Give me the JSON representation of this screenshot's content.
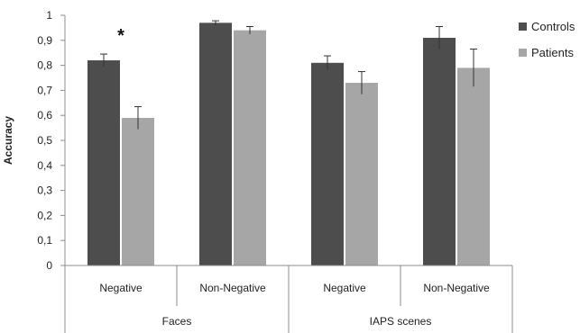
{
  "chart_data": {
    "type": "bar",
    "ylabel": "Accuracy",
    "ylim": [
      0,
      1
    ],
    "yticks": [
      "0",
      "0,1",
      "0,2",
      "0,3",
      "0,4",
      "0,5",
      "0,6",
      "0,7",
      "0,8",
      "0,9",
      "1"
    ],
    "grid": false,
    "legend_position": "right",
    "groups": [
      {
        "label": "Faces",
        "categories": [
          "Negative",
          "Non-Negative"
        ]
      },
      {
        "label": "IAPS scenes",
        "categories": [
          "Negative",
          "Non-Negative"
        ]
      }
    ],
    "series": [
      {
        "name": "Controls",
        "color": "#4d4d4d",
        "values": [
          0.82,
          0.97,
          0.81,
          0.91
        ],
        "errors": [
          0.025,
          0.008,
          0.028,
          0.045
        ]
      },
      {
        "name": "Patients",
        "color": "#a6a6a6",
        "values": [
          0.59,
          0.94,
          0.73,
          0.79
        ],
        "errors": [
          0.045,
          0.015,
          0.045,
          0.075
        ]
      }
    ],
    "annotations": [
      {
        "text": "*",
        "group": 0,
        "category": 0
      }
    ]
  }
}
